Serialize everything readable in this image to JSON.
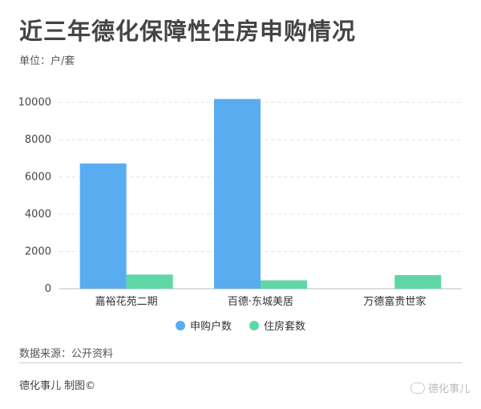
{
  "header": {
    "title": "近三年德化保障性住房申购情况",
    "unit": "单位：户/套"
  },
  "chart_data": {
    "type": "bar",
    "categories": [
      "嘉裕花苑二期",
      "百德·东城美居",
      "万德富贵世家"
    ],
    "series": [
      {
        "name": "申购户数",
        "color": "#5aacf0",
        "values": [
          6720,
          10180,
          null
        ]
      },
      {
        "name": "住房套数",
        "color": "#5fd7a4",
        "values": [
          760,
          450,
          730
        ]
      }
    ],
    "yticks": [
      0,
      2000,
      4000,
      6000,
      8000,
      10000
    ],
    "ylim": [
      0,
      10500
    ],
    "grid": true,
    "legend": "bottom"
  },
  "footer": {
    "source": "数据来源：公开资料",
    "credit": "德化事儿 制图©",
    "watermark": "德化事儿"
  }
}
